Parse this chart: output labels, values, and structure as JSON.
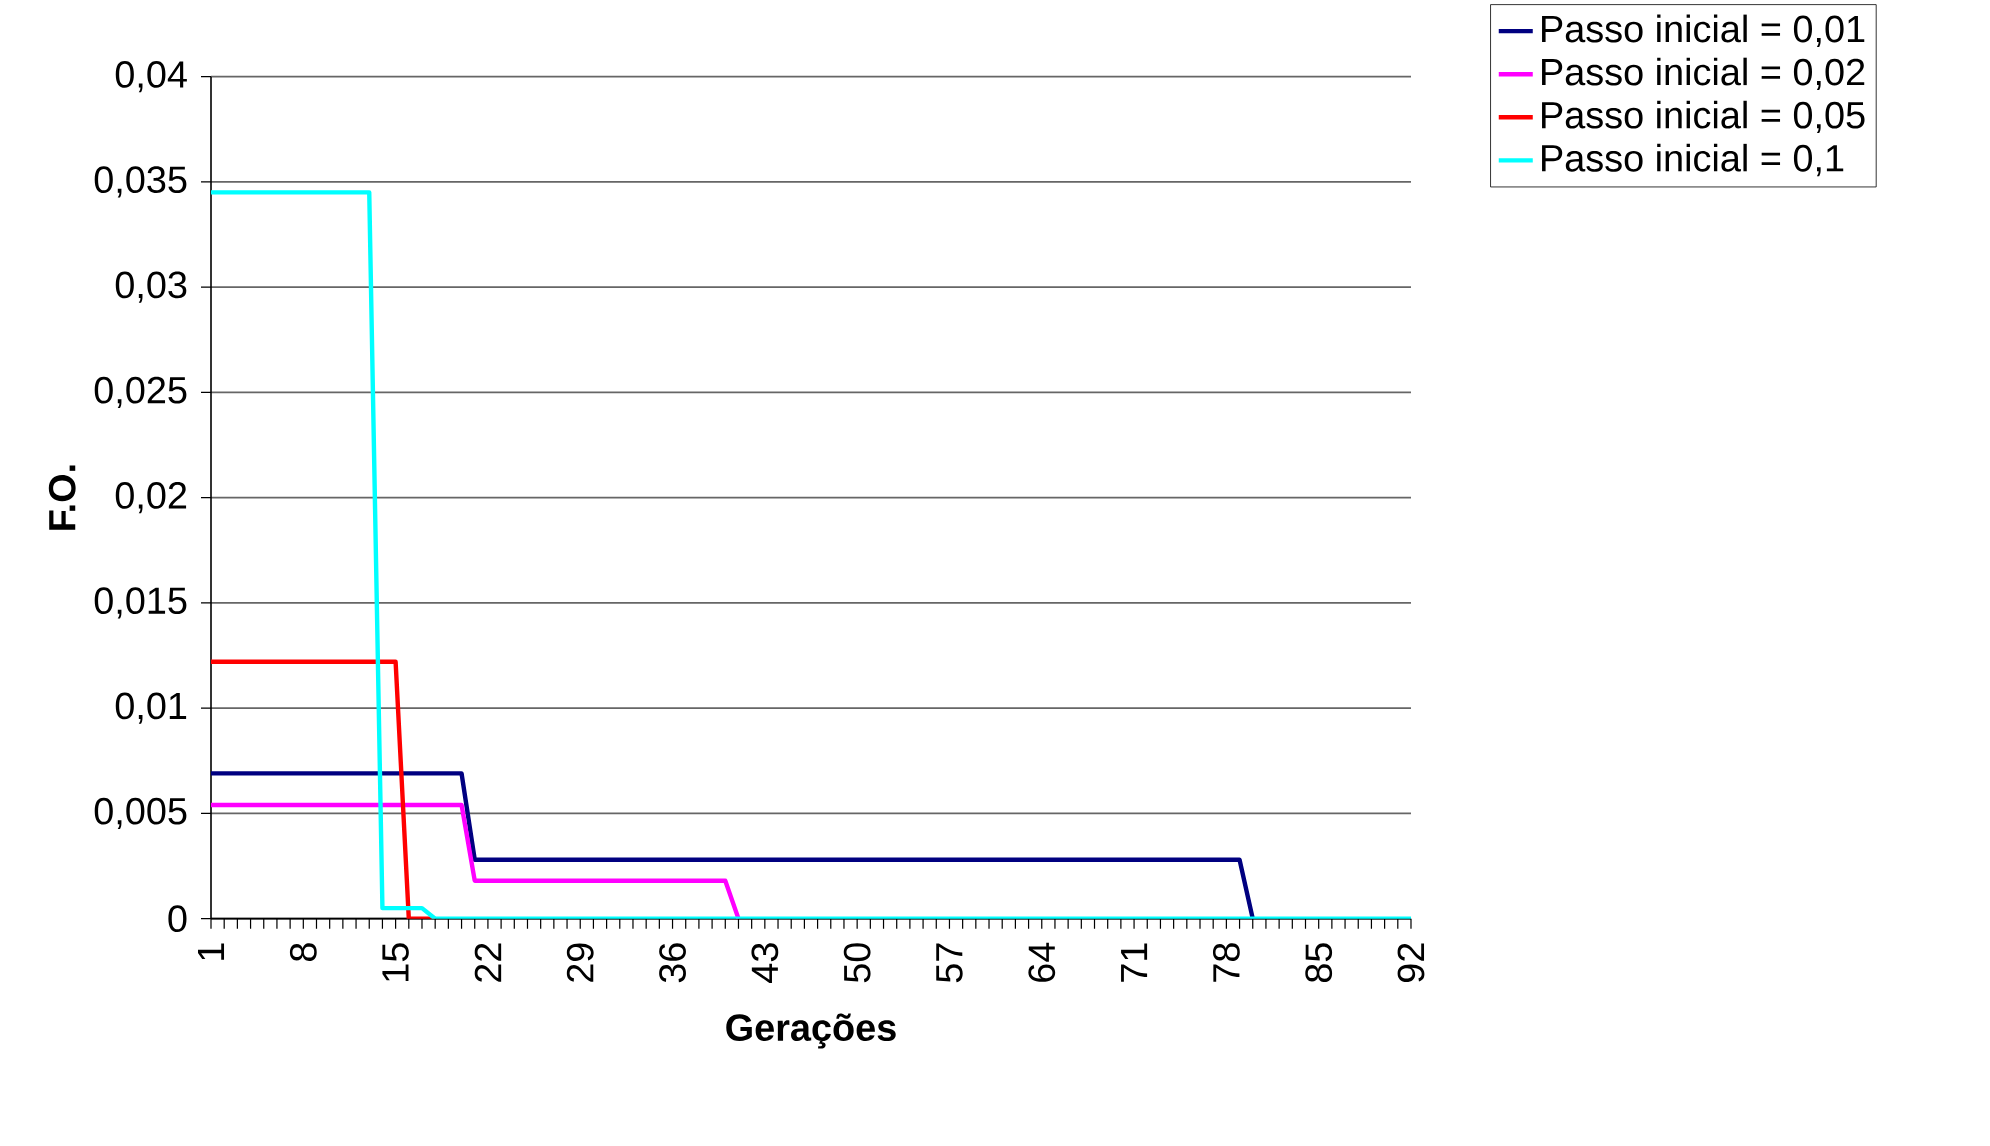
{
  "chart_data": {
    "type": "line",
    "xlabel": "Gerações",
    "ylabel": "F.O.",
    "categories": [
      "1",
      null,
      null,
      null,
      null,
      null,
      null,
      "8",
      null,
      null,
      null,
      null,
      null,
      null,
      "15",
      null,
      null,
      null,
      null,
      null,
      null,
      "22",
      null,
      null,
      null,
      null,
      null,
      null,
      "29",
      null,
      null,
      null,
      null,
      null,
      null,
      "36",
      null,
      null,
      null,
      null,
      null,
      null,
      "43",
      null,
      null,
      null,
      null,
      null,
      null,
      "50",
      null,
      null,
      null,
      null,
      null,
      null,
      "57",
      null,
      null,
      null,
      null,
      null,
      null,
      "64",
      null,
      null,
      null,
      null,
      null,
      null,
      "71",
      null,
      null,
      null,
      null,
      null,
      null,
      "78",
      null,
      null,
      null,
      null,
      null,
      null,
      "85",
      null,
      null,
      null,
      null,
      null,
      null,
      "92"
    ],
    "series": [
      {
        "name": "Passo inicial = 0,01",
        "color": "#000080",
        "values": [
          0.0069,
          0.0069,
          0.0069,
          0.0069,
          0.0069,
          0.0069,
          0.0069,
          0.0069,
          0.0069,
          0.0069,
          0.0069,
          0.0069,
          0.0069,
          0.0069,
          0.0069,
          0.0069,
          0.0069,
          0.0069,
          0.0069,
          0.0069,
          0.0028,
          0.0028,
          0.0028,
          0.0028,
          0.0028,
          0.0028,
          0.0028,
          0.0028,
          0.0028,
          0.0028,
          0.0028,
          0.0028,
          0.0028,
          0.0028,
          0.0028,
          0.0028,
          0.0028,
          0.0028,
          0.0028,
          0.0028,
          0.0028,
          0.0028,
          0.0028,
          0.0028,
          0.0028,
          0.0028,
          0.0028,
          0.0028,
          0.0028,
          0.0028,
          0.0028,
          0.0028,
          0.0028,
          0.0028,
          0.0028,
          0.0028,
          0.0028,
          0.0028,
          0.0028,
          0.0028,
          0.0028,
          0.0028,
          0.0028,
          0.0028,
          0.0028,
          0.0028,
          0.0028,
          0.0028,
          0.0028,
          0.0028,
          0.0028,
          0.0028,
          0.0028,
          0.0028,
          0.0028,
          0.0028,
          0.0028,
          0.0028,
          0.0028,
          0,
          null,
          null,
          null,
          null,
          null,
          null,
          null,
          null,
          null,
          null,
          null,
          null
        ]
      },
      {
        "name": "Passo inicial = 0,02",
        "color": "#ff00ff",
        "values": [
          0.0054,
          0.0054,
          0.0054,
          0.0054,
          0.0054,
          0.0054,
          0.0054,
          0.0054,
          0.0054,
          0.0054,
          0.0054,
          0.0054,
          0.0054,
          0.0054,
          0.0054,
          0.0054,
          0.0054,
          0.0054,
          0.0054,
          0.0054,
          0.0018,
          0.0018,
          0.0018,
          0.0018,
          0.0018,
          0.0018,
          0.0018,
          0.0018,
          0.0018,
          0.0018,
          0.0018,
          0.0018,
          0.0018,
          0.0018,
          0.0018,
          0.0018,
          0.0018,
          0.0018,
          0.0018,
          0.0018,
          0,
          null,
          null,
          null,
          null,
          null,
          null,
          null,
          null,
          null,
          null,
          null,
          null,
          null,
          null,
          null,
          null,
          null,
          null,
          null,
          null,
          null,
          null,
          null,
          null,
          null,
          null,
          null,
          null,
          null,
          null,
          null,
          null,
          null,
          null,
          null,
          null,
          null,
          null,
          null,
          null,
          null,
          null,
          null,
          null,
          null,
          null,
          null,
          null,
          null,
          null,
          null
        ]
      },
      {
        "name": "Passo inicial = 0,05",
        "color": "#ff0000",
        "values": [
          0.0122,
          0.0122,
          0.0122,
          0.0122,
          0.0122,
          0.0122,
          0.0122,
          0.0122,
          0.0122,
          0.0122,
          0.0122,
          0.0122,
          0.0122,
          0.0122,
          0.0122,
          0,
          0,
          0,
          null,
          null,
          null,
          null,
          null,
          null,
          null,
          null,
          null,
          null,
          null,
          null,
          null,
          null,
          null,
          null,
          null,
          null,
          null,
          null,
          null,
          null,
          null,
          null,
          null,
          null,
          null,
          null,
          null,
          null,
          null,
          null,
          null,
          null,
          null,
          null,
          null,
          null,
          null,
          null,
          null,
          null,
          null,
          null,
          null,
          null,
          null,
          null,
          null,
          null,
          null,
          null,
          null,
          null,
          null,
          null,
          null,
          null,
          null,
          null,
          null,
          null,
          null,
          null,
          null,
          null,
          null,
          null,
          null,
          null,
          null,
          null,
          null,
          null
        ]
      },
      {
        "name": "Passo inicial = 0,1",
        "color": "#00ffff",
        "values": [
          0.0345,
          0.0345,
          0.0345,
          0.0345,
          0.0345,
          0.0345,
          0.0345,
          0.0345,
          0.0345,
          0.0345,
          0.0345,
          0.0345,
          0.0345,
          0.0005,
          0.0005,
          0.0005,
          0.0005,
          0,
          0,
          0,
          0,
          0,
          0,
          0,
          0,
          0,
          0,
          0,
          0,
          0,
          0,
          0,
          0,
          0,
          0,
          0,
          0,
          0,
          0,
          0,
          0,
          0,
          0,
          0,
          0,
          0,
          0,
          0,
          0,
          0,
          0,
          0,
          0,
          0,
          0,
          0,
          0,
          0,
          0,
          0,
          0,
          0,
          0,
          0,
          0,
          0,
          0,
          0,
          0,
          0,
          0,
          0,
          0,
          0,
          0,
          0,
          0,
          0,
          0,
          0,
          0,
          0,
          0,
          0,
          0,
          0,
          0,
          0,
          0,
          0,
          0,
          0
        ]
      }
    ],
    "ylim": [
      0,
      0.04
    ],
    "yticks": [
      {
        "value": 0,
        "label": "0"
      },
      {
        "value": 0.005,
        "label": "0,005"
      },
      {
        "value": 0.01,
        "label": "0,01"
      },
      {
        "value": 0.015,
        "label": "0,015"
      },
      {
        "value": 0.02,
        "label": "0,02"
      },
      {
        "value": 0.025,
        "label": "0,025"
      },
      {
        "value": 0.03,
        "label": "0,03"
      },
      {
        "value": 0.035,
        "label": "0,035"
      },
      {
        "value": 0.04,
        "label": "0,04"
      }
    ],
    "grid": "y",
    "legend": "top right"
  }
}
